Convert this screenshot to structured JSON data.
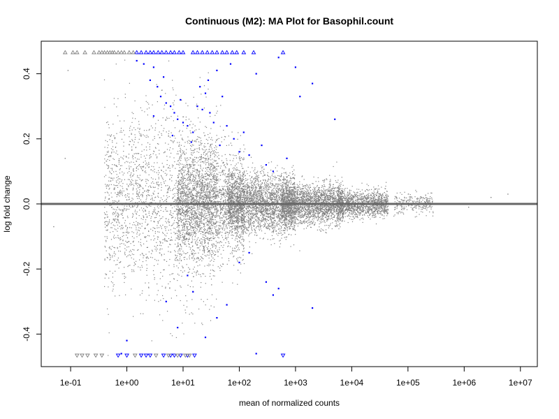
{
  "chart_data": {
    "type": "scatter",
    "title": "Continuous (M2): MA Plot for Basophil.count",
    "xlabel": "mean of normalized counts",
    "ylabel": "log fold change",
    "x_scale": "log",
    "xlim": [
      0.03,
      20000000
    ],
    "ylim": [
      -0.5,
      0.5
    ],
    "x_ticks": [
      {
        "value": 0.1,
        "label": "1e-01"
      },
      {
        "value": 1,
        "label": "1e+00"
      },
      {
        "value": 10,
        "label": "1e+01"
      },
      {
        "value": 100,
        "label": "1e+02"
      },
      {
        "value": 1000,
        "label": "1e+03"
      },
      {
        "value": 10000,
        "label": "1e+04"
      },
      {
        "value": 100000,
        "label": "1e+05"
      },
      {
        "value": 1000000,
        "label": "1e+06"
      },
      {
        "value": 10000000,
        "label": "1e+07"
      }
    ],
    "y_ticks": [
      {
        "value": -0.4,
        "label": "-0.4"
      },
      {
        "value": -0.2,
        "label": "-0.2"
      },
      {
        "value": 0.0,
        "label": "0.0"
      },
      {
        "value": 0.2,
        "label": "0.2"
      },
      {
        "value": 0.4,
        "label": "0.4"
      }
    ],
    "reference_line": {
      "y": 0
    },
    "grid": false,
    "legend": "none",
    "colors": {
      "non_significant": "#808080",
      "significant": "#0000ff",
      "reference_line": "#666666",
      "axis": "#000000"
    },
    "series": [
      {
        "key": "significant",
        "points": [
          {
            "x": 1.5,
            "y": 0.44
          },
          {
            "x": 2.0,
            "y": 0.43
          },
          {
            "x": 3.0,
            "y": 0.42
          },
          {
            "x": 2.6,
            "y": 0.38
          },
          {
            "x": 3.5,
            "y": 0.36
          },
          {
            "x": 4.0,
            "y": 0.33
          },
          {
            "x": 5.0,
            "y": 0.31
          },
          {
            "x": 6.0,
            "y": 0.3
          },
          {
            "x": 7.0,
            "y": 0.28
          },
          {
            "x": 8.0,
            "y": 0.26
          },
          {
            "x": 10,
            "y": 0.25
          },
          {
            "x": 12,
            "y": 0.24
          },
          {
            "x": 15,
            "y": 0.22
          },
          {
            "x": 18,
            "y": 0.3
          },
          {
            "x": 20,
            "y": 0.36
          },
          {
            "x": 25,
            "y": 0.34
          },
          {
            "x": 30,
            "y": 0.28
          },
          {
            "x": 40,
            "y": 0.41
          },
          {
            "x": 50,
            "y": 0.33
          },
          {
            "x": 60,
            "y": 0.24
          },
          {
            "x": 70,
            "y": 0.43
          },
          {
            "x": 80,
            "y": 0.2
          },
          {
            "x": 100,
            "y": 0.16
          },
          {
            "x": 120,
            "y": 0.22
          },
          {
            "x": 150,
            "y": 0.15
          },
          {
            "x": 200,
            "y": 0.4
          },
          {
            "x": 250,
            "y": 0.18
          },
          {
            "x": 300,
            "y": 0.12
          },
          {
            "x": 400,
            "y": 0.1
          },
          {
            "x": 500,
            "y": 0.45
          },
          {
            "x": 700,
            "y": 0.14
          },
          {
            "x": 1000,
            "y": 0.42
          },
          {
            "x": 1200,
            "y": 0.33
          },
          {
            "x": 2000,
            "y": 0.37
          },
          {
            "x": 5000,
            "y": 0.26
          },
          {
            "x": 3.0,
            "y": 0.27
          },
          {
            "x": 4.5,
            "y": 0.39
          },
          {
            "x": 9.0,
            "y": 0.32
          },
          {
            "x": 14,
            "y": 0.19
          },
          {
            "x": 22,
            "y": 0.29
          },
          {
            "x": 35,
            "y": 0.25
          },
          {
            "x": 45,
            "y": 0.18
          },
          {
            "x": 28,
            "y": 0.38
          },
          {
            "x": 6.5,
            "y": 0.21
          },
          {
            "x": 1.0,
            "y": -0.42
          },
          {
            "x": 0.8,
            "y": -0.46
          },
          {
            "x": 5.0,
            "y": -0.3
          },
          {
            "x": 8.0,
            "y": -0.38
          },
          {
            "x": 15,
            "y": -0.27
          },
          {
            "x": 25,
            "y": -0.41
          },
          {
            "x": 40,
            "y": -0.35
          },
          {
            "x": 60,
            "y": -0.31
          },
          {
            "x": 100,
            "y": -0.18
          },
          {
            "x": 150,
            "y": -0.15
          },
          {
            "x": 200,
            "y": -0.46
          },
          {
            "x": 300,
            "y": -0.24
          },
          {
            "x": 400,
            "y": -0.28
          },
          {
            "x": 500,
            "y": -0.26
          },
          {
            "x": 2000,
            "y": -0.32
          },
          {
            "x": 12,
            "y": -0.22
          }
        ]
      },
      {
        "key": "significant_out_of_range",
        "points": [
          {
            "x": 1.5,
            "y": 0.5
          },
          {
            "x": 1.8,
            "y": 0.5
          },
          {
            "x": 2.2,
            "y": 0.5
          },
          {
            "x": 2.6,
            "y": 0.5
          },
          {
            "x": 3.0,
            "y": 0.5
          },
          {
            "x": 3.6,
            "y": 0.5
          },
          {
            "x": 4.2,
            "y": 0.5
          },
          {
            "x": 5.0,
            "y": 0.5
          },
          {
            "x": 6.0,
            "y": 0.5
          },
          {
            "x": 7.0,
            "y": 0.5
          },
          {
            "x": 8.5,
            "y": 0.5
          },
          {
            "x": 10,
            "y": 0.5
          },
          {
            "x": 15,
            "y": 0.5
          },
          {
            "x": 18,
            "y": 0.5
          },
          {
            "x": 22,
            "y": 0.5
          },
          {
            "x": 27,
            "y": 0.5
          },
          {
            "x": 33,
            "y": 0.5
          },
          {
            "x": 40,
            "y": 0.5
          },
          {
            "x": 50,
            "y": 0.5
          },
          {
            "x": 60,
            "y": 0.5
          },
          {
            "x": 75,
            "y": 0.5
          },
          {
            "x": 90,
            "y": 0.5
          },
          {
            "x": 120,
            "y": 0.5
          },
          {
            "x": 180,
            "y": 0.5
          },
          {
            "x": 600,
            "y": 0.5
          },
          {
            "x": 0.7,
            "y": -0.5
          },
          {
            "x": 1.0,
            "y": -0.5
          },
          {
            "x": 1.8,
            "y": -0.5
          },
          {
            "x": 2.2,
            "y": -0.5
          },
          {
            "x": 2.6,
            "y": -0.5
          },
          {
            "x": 4.5,
            "y": -0.5
          },
          {
            "x": 6.0,
            "y": -0.5
          },
          {
            "x": 7.0,
            "y": -0.5
          },
          {
            "x": 9.0,
            "y": -0.5
          },
          {
            "x": 12,
            "y": -0.5
          },
          {
            "x": 16,
            "y": -0.5
          },
          {
            "x": 600,
            "y": -0.5
          }
        ]
      },
      {
        "key": "non_significant_out_of_range",
        "points": [
          {
            "x": 0.08,
            "y": 0.5
          },
          {
            "x": 0.11,
            "y": 0.5
          },
          {
            "x": 0.13,
            "y": 0.5
          },
          {
            "x": 0.18,
            "y": 0.5
          },
          {
            "x": 0.26,
            "y": 0.5
          },
          {
            "x": 0.32,
            "y": 0.5
          },
          {
            "x": 0.36,
            "y": 0.5
          },
          {
            "x": 0.4,
            "y": 0.5
          },
          {
            "x": 0.45,
            "y": 0.5
          },
          {
            "x": 0.5,
            "y": 0.5
          },
          {
            "x": 0.55,
            "y": 0.5
          },
          {
            "x": 0.6,
            "y": 0.5
          },
          {
            "x": 0.7,
            "y": 0.5
          },
          {
            "x": 0.8,
            "y": 0.5
          },
          {
            "x": 0.9,
            "y": 0.5
          },
          {
            "x": 1.1,
            "y": 0.5
          },
          {
            "x": 1.3,
            "y": 0.5
          },
          {
            "x": 0.13,
            "y": -0.5
          },
          {
            "x": 0.16,
            "y": -0.5
          },
          {
            "x": 0.2,
            "y": -0.5
          },
          {
            "x": 0.28,
            "y": -0.5
          },
          {
            "x": 0.36,
            "y": -0.5
          },
          {
            "x": 1.4,
            "y": -0.5
          },
          {
            "x": 3.3,
            "y": -0.5
          },
          {
            "x": 5.5,
            "y": -0.5
          },
          {
            "x": 8.0,
            "y": -0.5
          },
          {
            "x": 11,
            "y": -0.5
          },
          {
            "x": 13,
            "y": -0.5
          }
        ]
      }
    ],
    "non_significant_cloud": {
      "description_only_for_rendering": false,
      "segments": [
        {
          "log10_x_center": 0.6,
          "log10_x_spread": 1.0,
          "y_sd": 0.14,
          "count": 2200
        },
        {
          "log10_x_center": 1.5,
          "log10_x_spread": 0.6,
          "y_sd": 0.08,
          "count": 2600
        },
        {
          "log10_x_center": 2.4,
          "log10_x_spread": 0.6,
          "y_sd": 0.045,
          "count": 2800
        },
        {
          "log10_x_center": 3.3,
          "log10_x_spread": 0.55,
          "y_sd": 0.03,
          "count": 2400
        },
        {
          "log10_x_center": 4.2,
          "log10_x_spread": 0.45,
          "y_sd": 0.02,
          "count": 1300
        },
        {
          "log10_x_center": 5.1,
          "log10_x_spread": 0.35,
          "y_sd": 0.015,
          "count": 260
        }
      ],
      "sparse_points": [
        {
          "x": 6000000,
          "y": 0.03
        },
        {
          "x": 1200000,
          "y": -0.01
        },
        {
          "x": 3000000,
          "y": 0.02
        },
        {
          "x": 0.05,
          "y": -0.07
        },
        {
          "x": 0.08,
          "y": 0.14
        },
        {
          "x": 0.09,
          "y": 0.41
        }
      ]
    }
  }
}
